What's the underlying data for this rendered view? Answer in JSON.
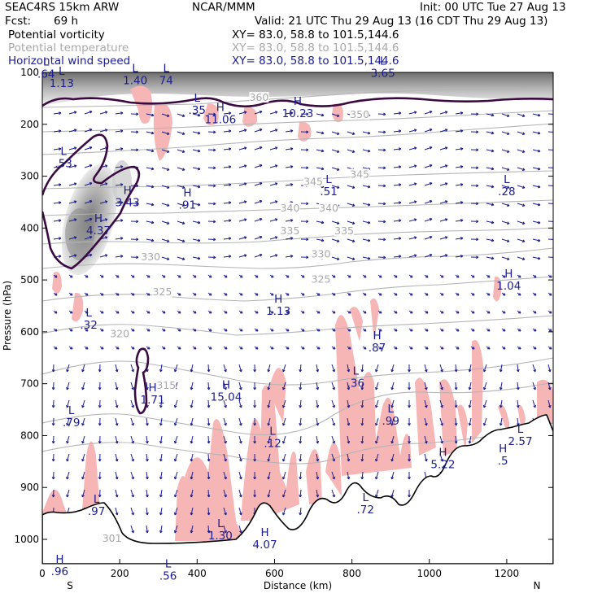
{
  "header": {
    "model": "SEAC4RS 15km ARW",
    "org": "NCAR/MMM",
    "init": "Init: 00 UTC Tue 27 Aug 13",
    "fcst_label": "Fcst:",
    "fcst_value": "69 h",
    "valid": "Valid: 21 UTC Thu 29 Aug 13 (16 CDT Thu 29 Aug 13)",
    "fields": [
      {
        "name": "Potential vorticity",
        "xy": "XY=  83.0, 58.8 to 101.5,144.6",
        "color": "#000000"
      },
      {
        "name": "Potential temperature",
        "xy": "XY=  83.0, 58.8 to 101.5,144.6",
        "color": "#a8a8a8"
      },
      {
        "name": "Horizontal wind speed",
        "xy": "XY=  83.0, 58.8 to 101.5,144.6",
        "color": "#1c1c8c"
      }
    ]
  },
  "colors": {
    "pv_contour": "#3a0a40",
    "theta": "#b4b4b4",
    "wind": "#1c1c8c",
    "shade_pink": "#f7b6b6",
    "terrain": "#000000"
  },
  "chart_data": {
    "type": "cross-section",
    "xlabel": "Distance (km)",
    "ylabel": "Pressure (hPa)",
    "xlim": [
      0,
      1320
    ],
    "ylim": [
      1050,
      100
    ],
    "x_ticks": [
      0,
      200,
      400,
      600,
      800,
      1000,
      1200
    ],
    "y_ticks": [
      100,
      200,
      300,
      400,
      500,
      600,
      700,
      800,
      900,
      1000
    ],
    "end_labels": {
      "left": "S",
      "right": "N"
    },
    "pv_contour_value": "1.5",
    "theta_contours": [
      {
        "label": "301",
        "x": 180,
        "p": 1005
      },
      {
        "label": "315",
        "x": 320,
        "p": 710
      },
      {
        "label": "320",
        "x": 200,
        "p": 610
      },
      {
        "label": "325",
        "x": 310,
        "p": 530
      },
      {
        "label": "325",
        "x": 720,
        "p": 505
      },
      {
        "label": "330",
        "x": 280,
        "p": 462
      },
      {
        "label": "330",
        "x": 720,
        "p": 457
      },
      {
        "label": "335",
        "x": 640,
        "p": 412
      },
      {
        "label": "335",
        "x": 780,
        "p": 412
      },
      {
        "label": "340",
        "x": 640,
        "p": 368
      },
      {
        "label": "340",
        "x": 740,
        "p": 368
      },
      {
        "label": "345",
        "x": 700,
        "p": 317
      },
      {
        "label": "345",
        "x": 820,
        "p": 303
      },
      {
        "label": "350",
        "x": 820,
        "p": 188
      },
      {
        "label": "360",
        "x": 560,
        "p": 155
      }
    ],
    "extrema": [
      {
        "type": "L",
        "value": ".64",
        "x": 10,
        "p": 110
      },
      {
        "type": "L",
        "value": "1.13",
        "x": 50,
        "p": 128
      },
      {
        "type": "L",
        "value": "1.40",
        "x": 240,
        "p": 123
      },
      {
        "type": "L",
        "value": "74",
        "x": 320,
        "p": 123
      },
      {
        "type": "L",
        "value": "3.65",
        "x": 880,
        "p": 109
      },
      {
        "type": "L",
        "value": ".35",
        "x": 400,
        "p": 180
      },
      {
        "type": "H",
        "value": "11.06",
        "x": 460,
        "p": 198
      },
      {
        "type": "H",
        "value": "10.23",
        "x": 660,
        "p": 186
      },
      {
        "type": "L",
        "value": ".53",
        "x": 55,
        "p": 283
      },
      {
        "type": "H",
        "value": "3.43",
        "x": 220,
        "p": 358
      },
      {
        "type": "H",
        "value": "4.37",
        "x": 145,
        "p": 412
      },
      {
        "type": "H",
        "value": ".91",
        "x": 375,
        "p": 363
      },
      {
        "type": "L",
        "value": ".51",
        "x": 740,
        "p": 337
      },
      {
        "type": "L",
        "value": ".28",
        "x": 1200,
        "p": 337
      },
      {
        "type": "H",
        "value": "1.04",
        "x": 1205,
        "p": 519
      },
      {
        "type": "H",
        "value": "1.13",
        "x": 610,
        "p": 567
      },
      {
        "type": "L",
        "value": ".32",
        "x": 120,
        "p": 594
      },
      {
        "type": "H",
        "value": ".87",
        "x": 865,
        "p": 638
      },
      {
        "type": "H",
        "value": "1.71",
        "x": 285,
        "p": 738
      },
      {
        "type": "H",
        "value": "15.04",
        "x": 475,
        "p": 733
      },
      {
        "type": "L",
        "value": ".36",
        "x": 810,
        "p": 706
      },
      {
        "type": "L",
        "value": ".99",
        "x": 900,
        "p": 779
      },
      {
        "type": "L",
        "value": ".79",
        "x": 75,
        "p": 782
      },
      {
        "type": "L",
        "value": ".12",
        "x": 595,
        "p": 822
      },
      {
        "type": "L",
        "value": "2.57",
        "x": 1235,
        "p": 818
      },
      {
        "type": "H",
        "value": ".5",
        "x": 1190,
        "p": 856
      },
      {
        "type": "H",
        "value": "5.22",
        "x": 1035,
        "p": 863
      },
      {
        "type": "L",
        "value": ".97",
        "x": 140,
        "p": 953
      },
      {
        "type": "L",
        "value": ".72",
        "x": 835,
        "p": 950
      },
      {
        "type": "L",
        "value": "1.30",
        "x": 460,
        "p": 1000
      },
      {
        "type": "H",
        "value": "4.07",
        "x": 575,
        "p": 1017
      },
      {
        "type": "H",
        "value": ".96",
        "x": 45,
        "p": 1069
      },
      {
        "type": "L",
        "value": ".56",
        "x": 325,
        "p": 1078
      }
    ]
  }
}
